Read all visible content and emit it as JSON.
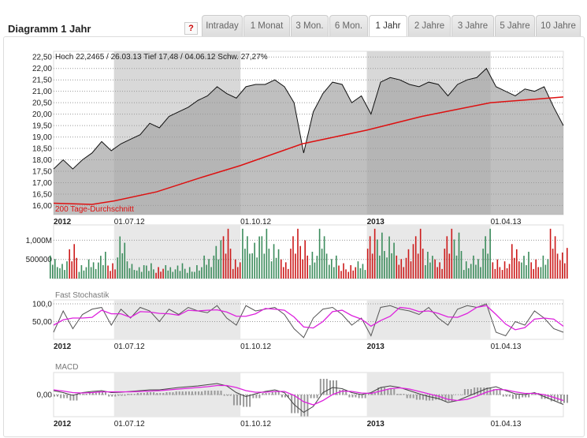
{
  "title": "Diagramm 1 Jahr",
  "help_label": "?",
  "tabs": [
    "Intraday",
    "1 Monat",
    "3 Mon.",
    "6 Mon.",
    "1 Jahr",
    "2 Jahre",
    "3 Jahre",
    "5 Jahre",
    "10 Jahre"
  ],
  "active_tab": "1 Jahr",
  "colors": {
    "price_fill": "#a9a9a9",
    "sma": "#dd1111",
    "vol_up": "#3c8c5c",
    "vol_down": "#cc1a1a",
    "stoch_k": "#555555",
    "stoch_d": "#dd22dd",
    "macd": "#444444",
    "signal": "#dd22dd",
    "shade": "#e8e8e8"
  },
  "chart_data": [
    {
      "type": "area",
      "annotation": "Hoch 22,2465 / 26.03.13 Tief 17,48 / 04.06.12 Schw. 27,27%",
      "sma_label": "200 Tage-Durchschnitt",
      "yticks": [
        "22,50",
        "22,00",
        "21,50",
        "21,00",
        "20,50",
        "20,00",
        "19,50",
        "19,00",
        "18,50",
        "18,00",
        "17,50",
        "17,00",
        "16,50",
        "16,00"
      ],
      "ylim": [
        15.6,
        22.75
      ],
      "xlim": [
        "2012-05-18",
        "2013-05-24"
      ],
      "xticks": [
        {
          "date": "2012-05-18",
          "label": "2012",
          "bold": true
        },
        {
          "date": "2012-07-01",
          "label": "01.07.12"
        },
        {
          "date": "2012-10-01",
          "label": "01.10.12"
        },
        {
          "date": "2013-01-01",
          "label": "2013",
          "bold": true
        },
        {
          "date": "2013-04-01",
          "label": "01.04.13"
        }
      ],
      "shaded_ranges": [
        [
          "2012-07-01",
          "2012-10-01"
        ],
        [
          "2013-01-01",
          "2013-04-01"
        ]
      ],
      "grid": true,
      "dates": [
        "2012-05-18",
        "2012-05-25",
        "2012-06-01",
        "2012-06-08",
        "2012-06-15",
        "2012-06-22",
        "2012-06-29",
        "2012-07-06",
        "2012-07-13",
        "2012-07-20",
        "2012-07-27",
        "2012-08-03",
        "2012-08-10",
        "2012-08-17",
        "2012-08-24",
        "2012-08-31",
        "2012-09-07",
        "2012-09-14",
        "2012-09-21",
        "2012-09-28",
        "2012-10-05",
        "2012-10-12",
        "2012-10-19",
        "2012-10-26",
        "2012-11-02",
        "2012-11-09",
        "2012-11-16",
        "2012-11-23",
        "2012-11-30",
        "2012-12-07",
        "2012-12-14",
        "2012-12-21",
        "2012-12-28",
        "2013-01-04",
        "2013-01-11",
        "2013-01-18",
        "2013-01-25",
        "2013-02-01",
        "2013-02-08",
        "2013-02-15",
        "2013-02-22",
        "2013-03-01",
        "2013-03-08",
        "2013-03-15",
        "2013-03-22",
        "2013-03-29",
        "2013-04-05",
        "2013-04-12",
        "2013-04-19",
        "2013-04-26",
        "2013-05-03",
        "2013-05-10",
        "2013-05-17",
        "2013-05-24"
      ],
      "price": [
        17.6,
        18.0,
        17.6,
        18.0,
        18.3,
        18.8,
        18.4,
        18.7,
        18.9,
        19.1,
        19.6,
        19.4,
        19.9,
        20.1,
        20.3,
        20.6,
        20.8,
        21.2,
        20.9,
        20.7,
        21.2,
        21.3,
        21.3,
        21.5,
        21.2,
        20.5,
        18.3,
        20.1,
        20.9,
        21.4,
        21.3,
        20.5,
        20.8,
        20.0,
        21.4,
        21.6,
        21.5,
        21.3,
        21.2,
        21.4,
        21.3,
        20.8,
        21.3,
        21.5,
        21.6,
        22.0,
        21.2,
        21.0,
        20.8,
        21.1,
        21.0,
        21.2,
        20.3,
        19.5
      ],
      "sma_dates": [
        "2012-05-18",
        "2012-06-15",
        "2012-07-01",
        "2012-08-01",
        "2012-09-01",
        "2012-10-01",
        "2012-11-15",
        "2013-01-01",
        "2013-02-10",
        "2013-04-01",
        "2013-05-24"
      ],
      "sma": [
        16.1,
        16.05,
        16.2,
        16.6,
        17.2,
        17.75,
        18.7,
        19.3,
        19.9,
        20.5,
        20.75
      ]
    },
    {
      "type": "bar",
      "yticks": [
        "1,000M",
        "500000"
      ],
      "ylim": [
        0,
        1400000
      ],
      "values": [
        600000,
        450000,
        900000,
        350000,
        500000,
        700000,
        400000,
        1100000,
        450000,
        350000,
        400000,
        300000,
        350000,
        400000,
        300000,
        350000,
        600000,
        1000000,
        1300000,
        500000,
        1300000,
        1100000,
        1300000,
        900000,
        500000,
        1300000,
        1000000,
        700000,
        1300000,
        600000,
        400000,
        350000,
        450000,
        1300000,
        1200000,
        1100000,
        600000,
        900000,
        1300000,
        700000,
        500000,
        1300000,
        1200000,
        450000,
        600000,
        1300000,
        500000,
        450000,
        900000,
        700000,
        500000,
        600000,
        1300000,
        800000
      ]
    },
    {
      "type": "line",
      "title": "Fast Stochastik",
      "yticks": [
        "100,0",
        "50,00"
      ],
      "ylim": [
        0,
        100
      ],
      "k": [
        20,
        80,
        30,
        70,
        85,
        90,
        40,
        85,
        60,
        90,
        80,
        50,
        85,
        70,
        90,
        80,
        75,
        95,
        60,
        40,
        95,
        80,
        85,
        90,
        70,
        30,
        5,
        60,
        85,
        90,
        70,
        40,
        60,
        10,
        90,
        95,
        85,
        80,
        70,
        90,
        60,
        40,
        85,
        95,
        90,
        100,
        20,
        10,
        50,
        40,
        80,
        60,
        30,
        20
      ],
      "d": [
        40,
        55,
        60,
        60,
        62,
        82,
        72,
        72,
        62,
        78,
        77,
        73,
        72,
        68,
        82,
        80,
        82,
        83,
        77,
        65,
        65,
        72,
        87,
        85,
        82,
        63,
        35,
        32,
        50,
        78,
        82,
        67,
        57,
        37,
        53,
        65,
        90,
        87,
        78,
        80,
        73,
        63,
        62,
        73,
        90,
        95,
        70,
        43,
        27,
        33,
        57,
        60,
        57,
        37
      ]
    },
    {
      "type": "line",
      "title": "MACD",
      "yticks": [
        "0,00"
      ],
      "ylim": [
        -0.56,
        0.56
      ],
      "macd": [
        0.1,
        0.05,
        -0.02,
        0.05,
        0.08,
        0.1,
        0.05,
        0.06,
        0.08,
        0.1,
        0.12,
        0.12,
        0.15,
        0.18,
        0.2,
        0.22,
        0.25,
        0.28,
        0.22,
        0.05,
        -0.05,
        0.02,
        0.08,
        0.12,
        0.05,
        -0.25,
        -0.45,
        -0.3,
        0.05,
        0.18,
        0.15,
        0.05,
        0.0,
        0.05,
        0.18,
        0.22,
        0.18,
        0.1,
        0.02,
        -0.05,
        -0.1,
        -0.2,
        -0.15,
        -0.05,
        0.05,
        0.15,
        0.2,
        0.1,
        0.02,
        0.0,
        0.05,
        -0.05,
        -0.15,
        -0.25
      ],
      "signal": [
        0.12,
        0.09,
        0.05,
        0.04,
        0.05,
        0.07,
        0.07,
        0.07,
        0.07,
        0.08,
        0.09,
        0.1,
        0.12,
        0.14,
        0.16,
        0.18,
        0.2,
        0.23,
        0.23,
        0.18,
        0.1,
        0.06,
        0.06,
        0.08,
        0.08,
        -0.02,
        -0.18,
        -0.26,
        -0.15,
        0.0,
        0.09,
        0.08,
        0.04,
        0.03,
        0.09,
        0.15,
        0.17,
        0.14,
        0.08,
        0.02,
        -0.04,
        -0.12,
        -0.15,
        -0.12,
        -0.04,
        0.06,
        0.13,
        0.12,
        0.07,
        0.03,
        0.03,
        0.0,
        -0.07,
        -0.15
      ]
    }
  ]
}
